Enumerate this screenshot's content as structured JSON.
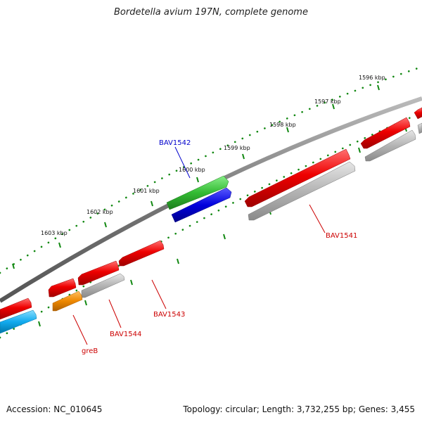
{
  "title": "Bordetella avium 197N, complete genome",
  "footer": {
    "accession": "Accession: NC_010645",
    "summary": "Topology: circular; Length: 3,732,255 bp; Genes: 3,455"
  },
  "ticks": {
    "t1596": "1596 kbp",
    "t1597": "1597 kbp",
    "t1598": "1598 kbp",
    "t1599": "1599 kbp",
    "t1600": "1600 kbp",
    "t1601": "1601 kbp",
    "t1602": "1602 kbp",
    "t1603": "1603 kbp"
  },
  "genes": {
    "bav1542": "BAV1542",
    "bav1541": "BAV1541",
    "bav1543": "BAV1543",
    "bav1544": "BAV1544",
    "greb": "greB"
  },
  "colors": {
    "backbone": "#7a7a7a",
    "cds_red": "#e00000",
    "cds_gray": "#b0b0b0",
    "cds_green": "#33bb33",
    "cds_blue": "#0000dd",
    "cds_orange": "#ee8800",
    "cds_cyan": "#11aaee",
    "tick_green": "#118811",
    "label_red": "#cc0000",
    "label_blue": "#0000cc"
  }
}
